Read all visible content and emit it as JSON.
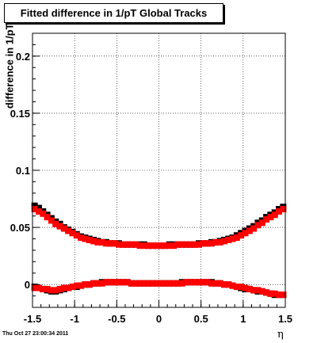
{
  "title": "Fitted difference in 1/pT  Global Tracks",
  "timestamp": "Thu Oct 27 23:00:34 2011",
  "chart_data": {
    "type": "scatter",
    "title": "Fitted difference in 1/pT  Global Tracks",
    "xlabel": "η",
    "ylabel": "difference in 1/pT",
    "xlim": [
      -1.5,
      1.5
    ],
    "ylim": [
      -0.02,
      0.22
    ],
    "x_ticks": [
      "-1.5",
      "-1",
      "-0.5",
      "0",
      "0.5",
      "1",
      "1.5"
    ],
    "y_ticks": [
      "0",
      "0.05",
      "0.1",
      "0.15",
      "0.2"
    ],
    "grid": true,
    "series": [
      {
        "marker": "square",
        "color": "#000000",
        "x": [
          -1.475,
          -1.425,
          -1.375,
          -1.325,
          -1.275,
          -1.225,
          -1.175,
          -1.125,
          -1.075,
          -1.025,
          -0.975,
          -0.925,
          -0.875,
          -0.825,
          -0.775,
          -0.725,
          -0.675,
          -0.625,
          -0.575,
          -0.525,
          -0.475,
          -0.425,
          -0.375,
          -0.325,
          -0.275,
          -0.225,
          -0.175,
          -0.125,
          -0.075,
          -0.025,
          0.025,
          0.075,
          0.125,
          0.175,
          0.225,
          0.275,
          0.325,
          0.375,
          0.425,
          0.475,
          0.525,
          0.575,
          0.625,
          0.675,
          0.725,
          0.775,
          0.825,
          0.875,
          0.925,
          0.975,
          1.025,
          1.075,
          1.125,
          1.175,
          1.225,
          1.275,
          1.325,
          1.375,
          1.425,
          1.475
        ],
        "y": [
          0.069,
          0.067,
          0.064,
          0.061,
          0.058,
          0.055,
          0.053,
          0.05,
          0.048,
          0.046,
          0.044,
          0.042,
          0.041,
          0.04,
          0.039,
          0.038,
          0.037,
          0.037,
          0.036,
          0.036,
          0.036,
          0.035,
          0.035,
          0.035,
          0.035,
          0.035,
          0.035,
          0.034,
          0.034,
          0.034,
          0.034,
          0.034,
          0.035,
          0.035,
          0.035,
          0.035,
          0.035,
          0.035,
          0.035,
          0.036,
          0.036,
          0.036,
          0.037,
          0.037,
          0.038,
          0.039,
          0.04,
          0.041,
          0.043,
          0.045,
          0.047,
          0.049,
          0.051,
          0.054,
          0.056,
          0.059,
          0.061,
          0.063,
          0.066,
          0.068
        ]
      },
      {
        "marker": "square",
        "color": "#ff0000",
        "x": [
          -1.475,
          -1.425,
          -1.375,
          -1.325,
          -1.275,
          -1.225,
          -1.175,
          -1.125,
          -1.075,
          -1.025,
          -0.975,
          -0.925,
          -0.875,
          -0.825,
          -0.775,
          -0.725,
          -0.675,
          -0.625,
          -0.575,
          -0.525,
          -0.475,
          -0.425,
          -0.375,
          -0.325,
          -0.275,
          -0.225,
          -0.175,
          -0.125,
          -0.075,
          -0.025,
          0.025,
          0.075,
          0.125,
          0.175,
          0.225,
          0.275,
          0.325,
          0.375,
          0.425,
          0.475,
          0.525,
          0.575,
          0.625,
          0.675,
          0.725,
          0.775,
          0.825,
          0.875,
          0.925,
          0.975,
          1.025,
          1.075,
          1.125,
          1.175,
          1.225,
          1.275,
          1.325,
          1.375,
          1.425,
          1.475
        ],
        "y": [
          0.066,
          0.064,
          0.062,
          0.059,
          0.056,
          0.053,
          0.051,
          0.049,
          0.047,
          0.045,
          0.043,
          0.041,
          0.04,
          0.039,
          0.038,
          0.037,
          0.037,
          0.036,
          0.036,
          0.036,
          0.035,
          0.035,
          0.035,
          0.035,
          0.035,
          0.034,
          0.034,
          0.034,
          0.034,
          0.034,
          0.034,
          0.034,
          0.034,
          0.034,
          0.035,
          0.035,
          0.035,
          0.035,
          0.035,
          0.035,
          0.036,
          0.036,
          0.036,
          0.037,
          0.037,
          0.038,
          0.039,
          0.04,
          0.041,
          0.043,
          0.045,
          0.047,
          0.049,
          0.052,
          0.054,
          0.057,
          0.059,
          0.061,
          0.064,
          0.066
        ]
      },
      {
        "marker": "square",
        "color": "#000000",
        "x": [
          -1.475,
          -1.425,
          -1.375,
          -1.325,
          -1.275,
          -1.225,
          -1.175,
          -1.125,
          -1.075,
          -1.025,
          -0.975,
          -0.925,
          -0.875,
          -0.825,
          -0.775,
          -0.725,
          -0.675,
          -0.625,
          -0.575,
          -0.525,
          -0.475,
          -0.425,
          -0.375,
          -0.325,
          -0.275,
          -0.225,
          -0.175,
          -0.125,
          -0.075,
          -0.025,
          0.025,
          0.075,
          0.125,
          0.175,
          0.225,
          0.275,
          0.325,
          0.375,
          0.425,
          0.475,
          0.525,
          0.575,
          0.625,
          0.675,
          0.725,
          0.775,
          0.825,
          0.875,
          0.925,
          0.975,
          1.025,
          1.075,
          1.125,
          1.175,
          1.225,
          1.275,
          1.325,
          1.375,
          1.425,
          1.475
        ],
        "y": [
          -0.002,
          -0.003,
          -0.004,
          -0.005,
          -0.006,
          -0.006,
          -0.005,
          -0.004,
          -0.003,
          -0.002,
          -0.002,
          -0.001,
          0.0,
          0.0,
          0.001,
          0.001,
          0.002,
          0.002,
          0.002,
          0.002,
          0.002,
          0.002,
          0.002,
          0.001,
          0.001,
          0.001,
          0.001,
          0.001,
          0.001,
          0.001,
          0.001,
          0.001,
          0.001,
          0.001,
          0.001,
          0.002,
          0.002,
          0.002,
          0.002,
          0.002,
          0.002,
          0.002,
          0.002,
          0.001,
          0.001,
          0.0,
          0.0,
          -0.001,
          -0.002,
          -0.003,
          -0.004,
          -0.004,
          -0.005,
          -0.006,
          -0.006,
          -0.007,
          -0.008,
          -0.009,
          -0.009,
          -0.009
        ]
      },
      {
        "marker": "square",
        "color": "#ff0000",
        "x": [
          -1.475,
          -1.425,
          -1.375,
          -1.325,
          -1.275,
          -1.225,
          -1.175,
          -1.125,
          -1.075,
          -1.025,
          -0.975,
          -0.925,
          -0.875,
          -0.825,
          -0.775,
          -0.725,
          -0.675,
          -0.625,
          -0.575,
          -0.525,
          -0.475,
          -0.425,
          -0.375,
          -0.325,
          -0.275,
          -0.225,
          -0.175,
          -0.125,
          -0.075,
          -0.025,
          0.025,
          0.075,
          0.125,
          0.175,
          0.225,
          0.275,
          0.325,
          0.375,
          0.425,
          0.475,
          0.525,
          0.575,
          0.625,
          0.675,
          0.725,
          0.775,
          0.825,
          0.875,
          0.925,
          0.975,
          1.025,
          1.075,
          1.125,
          1.175,
          1.225,
          1.275,
          1.325,
          1.375,
          1.425,
          1.475
        ],
        "y": [
          -0.003,
          -0.003,
          -0.004,
          -0.004,
          -0.005,
          -0.005,
          -0.004,
          -0.003,
          -0.003,
          -0.002,
          -0.001,
          -0.001,
          0.0,
          0.0,
          0.001,
          0.001,
          0.001,
          0.002,
          0.002,
          0.002,
          0.002,
          0.002,
          0.002,
          0.001,
          0.001,
          0.001,
          0.001,
          0.001,
          0.001,
          0.001,
          0.001,
          0.001,
          0.001,
          0.001,
          0.001,
          0.001,
          0.002,
          0.002,
          0.002,
          0.002,
          0.002,
          0.002,
          0.001,
          0.001,
          0.001,
          0.0,
          0.0,
          -0.001,
          -0.002,
          -0.002,
          -0.003,
          -0.004,
          -0.005,
          -0.005,
          -0.006,
          -0.007,
          -0.008,
          -0.008,
          -0.009,
          -0.009
        ]
      }
    ]
  }
}
